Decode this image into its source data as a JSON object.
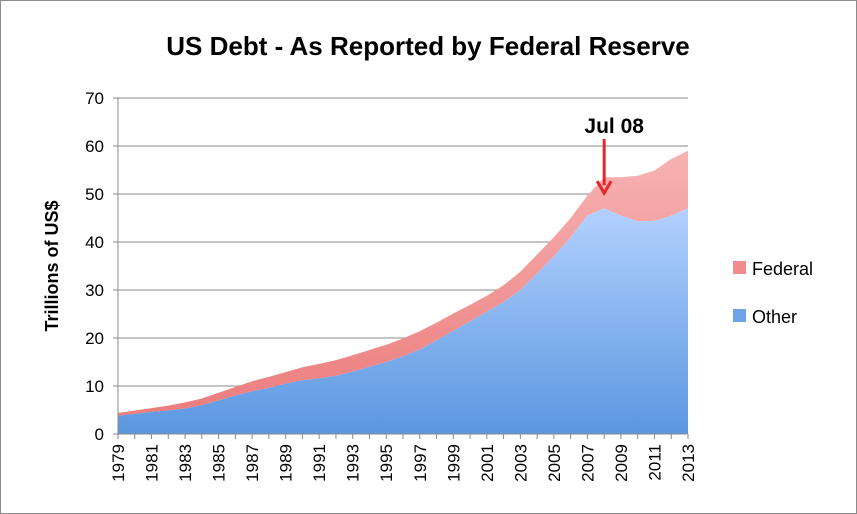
{
  "chart_data": {
    "type": "area",
    "stacked": true,
    "title": "US Debt - As Reported by Federal Reserve",
    "xlabel": "",
    "ylabel": "Trillions of US$",
    "ylim": [
      0,
      70
    ],
    "yticks": [
      0,
      10,
      20,
      30,
      40,
      50,
      60,
      70
    ],
    "grid": true,
    "legend_position": "right",
    "x": [
      1979,
      1980,
      1981,
      1982,
      1983,
      1984,
      1985,
      1986,
      1987,
      1988,
      1989,
      1990,
      1991,
      1992,
      1993,
      1994,
      1995,
      1996,
      1997,
      1998,
      1999,
      2000,
      2001,
      2002,
      2003,
      2004,
      2005,
      2006,
      2007,
      2008,
      2009,
      2010,
      2011,
      2012,
      2013
    ],
    "xtick_labels": [
      "1979",
      "1981",
      "1983",
      "1985",
      "1987",
      "1989",
      "1991",
      "1993",
      "1995",
      "1997",
      "1999",
      "2001",
      "2003",
      "2005",
      "2007",
      "2009",
      "2011",
      "2013"
    ],
    "series": [
      {
        "name": "Other",
        "color": "#6fa3e8",
        "values": [
          3.8,
          4.2,
          4.6,
          4.9,
          5.3,
          6.0,
          7.0,
          8.0,
          8.9,
          9.6,
          10.5,
          11.2,
          11.6,
          12.1,
          13.0,
          14.0,
          15.0,
          16.2,
          17.6,
          19.5,
          21.5,
          23.5,
          25.5,
          27.5,
          30.0,
          33.5,
          37.0,
          41.0,
          45.5,
          47.0,
          45.5,
          44.3,
          44.4,
          45.5,
          47.0
        ]
      },
      {
        "name": "Federal",
        "color": "#f08c8c",
        "values": [
          0.6,
          0.7,
          0.8,
          1.0,
          1.3,
          1.4,
          1.6,
          1.8,
          2.1,
          2.3,
          2.4,
          2.7,
          3.0,
          3.3,
          3.4,
          3.5,
          3.6,
          3.7,
          3.8,
          3.7,
          3.6,
          3.4,
          3.3,
          3.5,
          3.8,
          3.9,
          4.0,
          4.0,
          4.2,
          6.5,
          8.0,
          9.5,
          10.5,
          11.8,
          12.0
        ]
      }
    ],
    "annotations": [
      {
        "text": "Jul 08",
        "x": 2008.0,
        "y": 50.6,
        "arrow_color": "#e8262a"
      }
    ]
  }
}
